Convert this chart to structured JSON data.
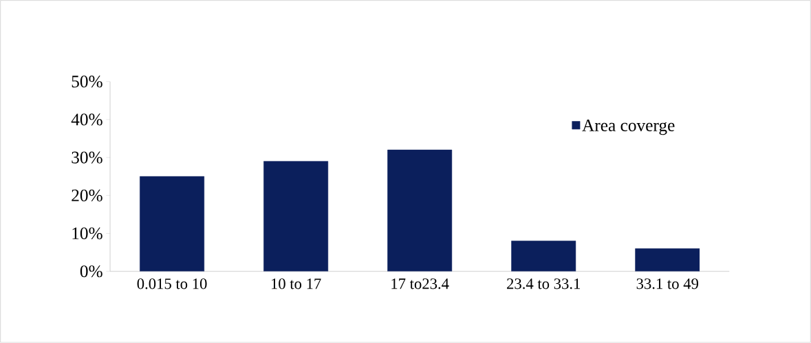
{
  "chart_data": {
    "type": "bar",
    "categories": [
      "0.015 to 10",
      "10 to 17",
      "17 to23.4",
      "23.4 to 33.1",
      "33.1 to 49"
    ],
    "series": [
      {
        "name": "Area coverge",
        "color": "#0b1f5c",
        "values": [
          25,
          29,
          32,
          8,
          6
        ]
      }
    ],
    "ylim": [
      0,
      50
    ],
    "yticks": [
      {
        "value": 0,
        "label": "0%"
      },
      {
        "value": 10,
        "label": "10%"
      },
      {
        "value": 20,
        "label": "20%"
      },
      {
        "value": 30,
        "label": "30%"
      },
      {
        "value": 40,
        "label": "40%"
      },
      {
        "value": 50,
        "label": "50%"
      }
    ],
    "legend": "top right"
  }
}
